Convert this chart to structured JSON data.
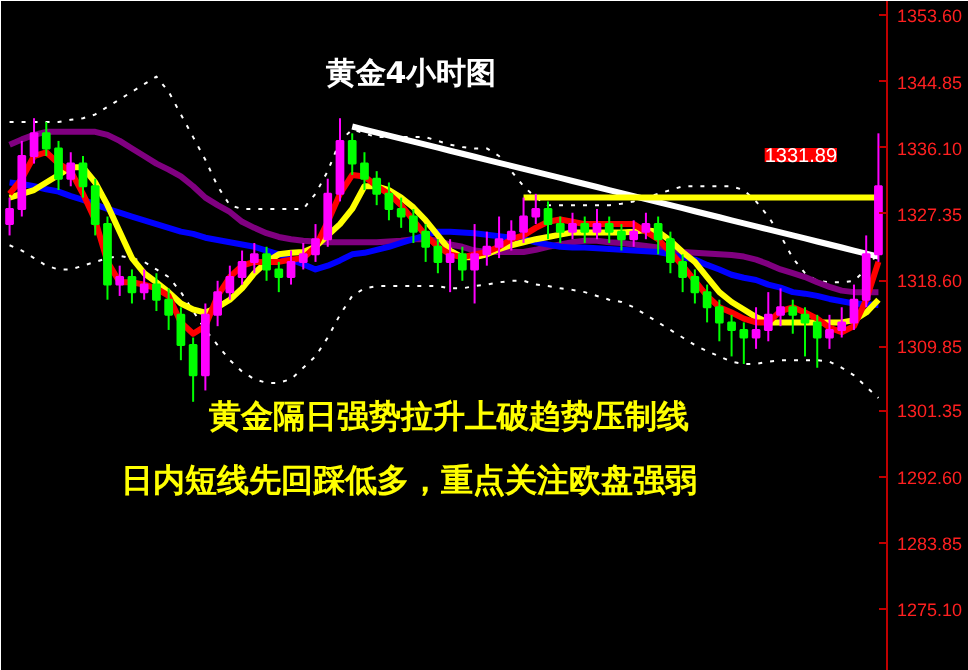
{
  "chart_data": {
    "type": "candlestick",
    "title": "黄金4小时图",
    "categories": [
      null,
      null,
      null,
      null,
      null,
      null,
      null,
      null,
      null,
      null,
      null,
      null,
      null,
      null,
      null,
      null,
      null,
      null,
      null,
      null,
      null,
      null,
      null,
      null,
      null,
      null,
      null,
      null,
      null,
      null,
      null,
      null,
      null,
      null,
      null,
      null,
      null,
      null,
      null,
      null,
      null,
      null,
      null,
      null,
      null,
      null,
      null,
      null,
      null,
      null,
      null,
      null,
      null,
      null,
      null,
      null,
      null,
      null,
      null,
      null,
      null,
      null,
      null,
      null,
      null,
      null,
      null,
      null,
      null,
      null,
      null,
      null
    ],
    "ohlc": [
      [
        1326,
        1329.5,
        1324.5,
        1328
      ],
      [
        1328,
        1337,
        1327,
        1335
      ],
      [
        1335,
        1340,
        1334,
        1338
      ],
      [
        1338,
        1339.5,
        1335,
        1336
      ],
      [
        1336,
        1337,
        1330.5,
        1332
      ],
      [
        1332,
        1335.5,
        1331,
        1334
      ],
      [
        1334,
        1335,
        1329.5,
        1331
      ],
      [
        1331,
        1332,
        1324.5,
        1326
      ],
      [
        1326,
        1327,
        1316,
        1318
      ],
      [
        1318,
        1320.5,
        1316.5,
        1319
      ],
      [
        1319,
        1320,
        1315.5,
        1317
      ],
      [
        1317,
        1320,
        1316,
        1318
      ],
      [
        1318,
        1319.5,
        1314.5,
        1316
      ],
      [
        1316,
        1317.5,
        1312,
        1314
      ],
      [
        1314,
        1315,
        1308,
        1310
      ],
      [
        1310,
        1311,
        1302.5,
        1306
      ],
      [
        1306,
        1315.5,
        1304,
        1314
      ],
      [
        1314,
        1318.5,
        1312.5,
        1317
      ],
      [
        1317,
        1320.5,
        1316,
        1319
      ],
      [
        1319,
        1322.5,
        1318,
        1321
      ],
      [
        1321,
        1323.5,
        1319.5,
        1322
      ],
      [
        1322,
        1323,
        1318.5,
        1320
      ],
      [
        1320,
        1321,
        1317,
        1319
      ],
      [
        1319,
        1322.5,
        1318,
        1321
      ],
      [
        1321,
        1323.5,
        1320,
        1322
      ],
      [
        1322,
        1326,
        1321,
        1324
      ],
      [
        1324,
        1332,
        1323,
        1330
      ],
      [
        1330,
        1340,
        1329,
        1337
      ],
      [
        1337,
        1338,
        1332.5,
        1334
      ],
      [
        1334,
        1335.5,
        1330.5,
        1332
      ],
      [
        1332,
        1333,
        1328.5,
        1330
      ],
      [
        1330,
        1331.5,
        1326.5,
        1328
      ],
      [
        1328,
        1329.5,
        1325.5,
        1327
      ],
      [
        1327,
        1328,
        1323.5,
        1325
      ],
      [
        1325,
        1326,
        1321,
        1323
      ],
      [
        1323,
        1324,
        1319.5,
        1321
      ],
      [
        1321,
        1324,
        1317,
        1322
      ],
      [
        1322,
        1323,
        1318.5,
        1320
      ],
      [
        1320,
        1326,
        1315.5,
        1322
      ],
      [
        1322,
        1325,
        1320.5,
        1323
      ],
      [
        1323,
        1327,
        1321.5,
        1324
      ],
      [
        1324,
        1326.5,
        1322.5,
        1325
      ],
      [
        1325,
        1329.5,
        1323.5,
        1327
      ],
      [
        1327,
        1330,
        1326,
        1328
      ],
      [
        1328,
        1329,
        1324,
        1326
      ],
      [
        1326,
        1327,
        1323.5,
        1325
      ],
      [
        1325,
        1327.5,
        1324,
        1326
      ],
      [
        1326,
        1327,
        1323.5,
        1325
      ],
      [
        1325,
        1328,
        1324,
        1326
      ],
      [
        1326,
        1327,
        1323.5,
        1325
      ],
      [
        1325,
        1326,
        1322.5,
        1324
      ],
      [
        1324,
        1326.5,
        1323,
        1325
      ],
      [
        1325,
        1327.5,
        1324,
        1326
      ],
      [
        1326,
        1327,
        1322,
        1324
      ],
      [
        1324,
        1325,
        1319.5,
        1321
      ],
      [
        1321,
        1322,
        1317,
        1319
      ],
      [
        1319,
        1320,
        1315.5,
        1317
      ],
      [
        1317,
        1318,
        1313,
        1315
      ],
      [
        1315,
        1316,
        1310.5,
        1313
      ],
      [
        1313,
        1314,
        1308.5,
        1312
      ],
      [
        1312,
        1313,
        1307.5,
        1311
      ],
      [
        1311,
        1315,
        1309.5,
        1312
      ],
      [
        1312,
        1317,
        1310.5,
        1314
      ],
      [
        1314,
        1317.5,
        1312.5,
        1315
      ],
      [
        1315,
        1316,
        1311.5,
        1314
      ],
      [
        1314,
        1315,
        1308.5,
        1313
      ],
      [
        1313,
        1314,
        1307,
        1311
      ],
      [
        1311,
        1314,
        1309.5,
        1312
      ],
      [
        1312,
        1315,
        1311,
        1313
      ],
      [
        1313,
        1318,
        1312,
        1316
      ],
      [
        1316,
        1324.5,
        1315,
        1322
      ],
      [
        1322,
        1338,
        1321,
        1331
      ]
    ],
    "colors": [
      "#ff00ff",
      "#ff00ff",
      "#ff00ff",
      "#00ff00",
      "#00ff00",
      "#ff00ff",
      "#00ff00",
      "#00ff00",
      "#00ff00",
      "#ff00ff",
      "#00ff00",
      "#ff00ff",
      "#00ff00",
      "#00ff00",
      "#00ff00",
      "#00ff00",
      "#ff00ff",
      "#ff00ff",
      "#ff00ff",
      "#ff00ff",
      "#ff00ff",
      "#00ff00",
      "#00ff00",
      "#ff00ff",
      "#ff00ff",
      "#ff00ff",
      "#ff00ff",
      "#ff00ff",
      "#00ff00",
      "#00ff00",
      "#00ff00",
      "#00ff00",
      "#00ff00",
      "#00ff00",
      "#00ff00",
      "#00ff00",
      "#ff00ff",
      "#00ff00",
      "#ff00ff",
      "#ff00ff",
      "#ff00ff",
      "#ff00ff",
      "#ff00ff",
      "#ff00ff",
      "#00ff00",
      "#00ff00",
      "#ff00ff",
      "#00ff00",
      "#ff00ff",
      "#00ff00",
      "#00ff00",
      "#ff00ff",
      "#ff00ff",
      "#00ff00",
      "#00ff00",
      "#00ff00",
      "#00ff00",
      "#00ff00",
      "#00ff00",
      "#00ff00",
      "#00ff00",
      "#ff00ff",
      "#ff00ff",
      "#ff00ff",
      "#00ff00",
      "#00ff00",
      "#00ff00",
      "#ff00ff",
      "#ff00ff",
      "#ff00ff",
      "#ff00ff",
      "#ff00ff"
    ],
    "series": [
      {
        "type": "line",
        "line_style": "dotted",
        "color": "#ffffff",
        "values": [
          1339.5,
          1339.5,
          1339.5,
          1339.5,
          1339.5,
          1339.8,
          1340,
          1340.5,
          1341.5,
          1342.5,
          1343.5,
          1344.5,
          1345.5,
          1343.5,
          1340.5,
          1337.5,
          1334.5,
          1331,
          1328.5,
          1328,
          1328,
          1328,
          1328,
          1328,
          1328,
          1330,
          1333,
          1337,
          1338.5,
          1338,
          1337.5,
          1337.5,
          1337.5,
          1337.5,
          1337.5,
          1337,
          1336.5,
          1336.2,
          1336,
          1336,
          1335,
          1333,
          1331,
          1329.5,
          1328.5,
          1328.5,
          1328.5,
          1328.5,
          1328.5,
          1328.5,
          1328.7,
          1329,
          1329.5,
          1330,
          1330.5,
          1331,
          1331,
          1331,
          1331,
          1331,
          1330.5,
          1329,
          1327,
          1324.5,
          1321.5,
          1319.5,
          1318.5,
          1318.3,
          1318.3,
          1318.5,
          1320,
          1322.3
        ]
      },
      {
        "type": "line",
        "line_style": "dotted",
        "color": "#ffffff",
        "values": [
          1323.2,
          1322.5,
          1321.5,
          1320.5,
          1320,
          1320,
          1320.5,
          1321,
          1321.5,
          1321.8,
          1321.5,
          1321,
          1320,
          1319,
          1317,
          1314.5,
          1312,
          1310,
          1308,
          1306.5,
          1305.5,
          1305,
          1305,
          1305.5,
          1307,
          1308.5,
          1311,
          1314,
          1316.5,
          1317.5,
          1317.8,
          1317.8,
          1317.8,
          1317.8,
          1317.8,
          1317.8,
          1317.5,
          1317.5,
          1317.8,
          1318,
          1318.3,
          1318.5,
          1318.5,
          1318,
          1317.8,
          1317.5,
          1317.3,
          1317,
          1316.5,
          1316,
          1315.7,
          1315,
          1314,
          1313,
          1312,
          1311,
          1310,
          1309.2,
          1308.5,
          1307.8,
          1307.5,
          1307.5,
          1307.8,
          1308,
          1308,
          1308,
          1308,
          1307.8,
          1307,
          1306,
          1304.5,
          1303
        ]
      },
      {
        "type": "line",
        "line_style": "solid",
        "color": "#800080",
        "values": [
          1336.5,
          1337.2,
          1337.8,
          1338.2,
          1338.2,
          1338.2,
          1338.2,
          1338.2,
          1337.8,
          1337,
          1336,
          1335,
          1334,
          1333.2,
          1332.3,
          1331,
          1329.5,
          1328.5,
          1327.6,
          1326.3,
          1325.5,
          1324.8,
          1324.3,
          1324,
          1323.8,
          1323.7,
          1323.6,
          1323.6,
          1323.6,
          1323.6,
          1323.6,
          1323.7,
          1323.8,
          1324,
          1324,
          1323.8,
          1323.3,
          1323,
          1322.5,
          1322.3,
          1322.3,
          1322.3,
          1322.3,
          1322.6,
          1323,
          1323.3,
          1323.6,
          1323.8,
          1323.8,
          1323.6,
          1323.5,
          1323.3,
          1323.1,
          1322.9,
          1322.6,
          1322.3,
          1322.2,
          1322.1,
          1322,
          1321.9,
          1321.7,
          1321.3,
          1320.7,
          1320,
          1319.5,
          1319,
          1318.3,
          1317.7,
          1317.2,
          1317,
          1317,
          1317
        ]
      },
      {
        "type": "line",
        "line_style": "solid",
        "color": "#0000ff",
        "values": [
          1331.5,
          1331.3,
          1331,
          1330.6,
          1330.3,
          1329.7,
          1329.2,
          1328.6,
          1328,
          1327.5,
          1327,
          1326.5,
          1326,
          1325.5,
          1325,
          1324.7,
          1324.2,
          1323.9,
          1323.6,
          1323.3,
          1323,
          1322.5,
          1322,
          1321.3,
          1320.7,
          1320,
          1320.5,
          1321.2,
          1322,
          1322.2,
          1322.6,
          1323,
          1323.5,
          1324,
          1324.5,
          1325,
          1325,
          1324.9,
          1324.8,
          1324.6,
          1324.4,
          1324.2,
          1324,
          1323.6,
          1323.3,
          1323,
          1322.9,
          1322.9,
          1322.8,
          1322.7,
          1322.6,
          1322.5,
          1322.4,
          1322.3,
          1322,
          1321.6,
          1321.3,
          1320.6,
          1320,
          1319.3,
          1318.9,
          1318.6,
          1318,
          1317.6,
          1317,
          1316.8,
          1316.5,
          1316.1,
          1315.8,
          1315.5,
          1315.4,
          1315.3
        ]
      },
      {
        "type": "line",
        "line_style": "solid",
        "color": "#ffff00",
        "values": [
          1329.5,
          1330,
          1330.5,
          1331.5,
          1332.5,
          1333.5,
          1333.5,
          1331.5,
          1328.5,
          1325,
          1321.5,
          1319.5,
          1318.3,
          1317,
          1315.5,
          1314.7,
          1314.3,
          1315,
          1316,
          1317.5,
          1319.5,
          1321,
          1322,
          1322.2,
          1322.3,
          1323,
          1324.5,
          1326,
          1328,
          1331,
          1331,
          1330.5,
          1329.5,
          1328.2,
          1326.5,
          1324.5,
          1322.5,
          1321.6,
          1321.6,
          1322,
          1322.7,
          1323.2,
          1323.6,
          1324,
          1324.3,
          1324.6,
          1324.9,
          1324.9,
          1324.9,
          1324.9,
          1324.9,
          1325,
          1325.2,
          1325,
          1323.8,
          1322.3,
          1321,
          1319,
          1317,
          1315.7,
          1314.7,
          1313.7,
          1313,
          1313,
          1313,
          1313,
          1313,
          1313,
          1313,
          1313.3,
          1314.3,
          1316
        ]
      },
      {
        "type": "line",
        "line_style": "solid",
        "color": "#ff0000",
        "values": [
          1330,
          1332,
          1335,
          1335.5,
          1334,
          1333,
          1330,
          1326.5,
          1321,
          1318.3,
          1318.3,
          1318,
          1317.5,
          1316.5,
          1313,
          1311.5,
          1312.5,
          1316.5,
          1319,
          1320.5,
          1321,
          1321,
          1321,
          1321.3,
          1321.5,
          1323,
          1326.3,
          1330,
          1332.5,
          1332.3,
          1331,
          1330,
          1328.5,
          1326.5,
          1324.5,
          1323,
          1322,
          1321.6,
          1322,
          1322.3,
          1323,
          1324,
          1324.5,
          1325.5,
          1326.3,
          1326.6,
          1326.3,
          1326,
          1326,
          1326,
          1326,
          1326,
          1325,
          1324,
          1322.3,
          1320.5,
          1318.5,
          1316.5,
          1315,
          1314.3,
          1313.5,
          1313,
          1313,
          1314.5,
          1315,
          1314.3,
          1313.5,
          1312.3,
          1311.7,
          1312.5,
          1316,
          1321
        ]
      },
      {
        "type": "line",
        "line_style": "solid",
        "color": "#ffffff",
        "values": [
          null,
          null,
          null,
          null,
          null,
          null,
          null,
          null,
          null,
          null,
          null,
          null,
          null,
          null,
          null,
          null,
          null,
          null,
          null,
          null,
          null,
          null,
          null,
          null,
          null,
          null,
          null,
          null,
          1338.9,
          1338.5,
          1338.1,
          1337.7,
          1337.3,
          1336.9,
          1336.5,
          1336.1,
          1335.7,
          1335.3,
          1334.9,
          1334.5,
          1334.1,
          1333.7,
          1333.3,
          1332.9,
          1332.5,
          1332.1,
          1331.7,
          1331.3,
          1330.9,
          1330.5,
          1330.1,
          1329.7,
          1329.3,
          1328.9,
          1328.5,
          1328.1,
          1327.7,
          1327.3,
          1326.9,
          1326.5,
          1326.1,
          1325.7,
          1325.3,
          1324.9,
          1324.5,
          1324.1,
          1323.7,
          1323.3,
          1322.9,
          1322.5,
          1322.1,
          1321.7
        ]
      },
      {
        "type": "line",
        "line_style": "solid",
        "color": "#ffff00",
        "values": [
          null,
          null,
          null,
          null,
          null,
          null,
          null,
          null,
          null,
          null,
          null,
          null,
          null,
          null,
          null,
          null,
          null,
          null,
          null,
          null,
          null,
          null,
          null,
          null,
          null,
          null,
          null,
          null,
          null,
          null,
          null,
          null,
          null,
          null,
          null,
          null,
          null,
          null,
          null,
          null,
          null,
          null,
          1329.5,
          1329.5,
          1329.5,
          1329.5,
          1329.5,
          1329.5,
          1329.5,
          1329.5,
          1329.5,
          1329.5,
          1329.5,
          1329.5,
          1329.5,
          1329.5,
          1329.5,
          1329.5,
          1329.5,
          1329.5,
          1329.5,
          1329.5,
          1329.5,
          1329.5,
          1329.5,
          1329.5,
          1329.5,
          1329.5,
          1329.5,
          1329.5,
          1329.5,
          1329.5
        ]
      }
    ],
    "ylim": [
      1266.9,
      1355.5
    ],
    "yticks": [
      {
        "value": 1353.6,
        "label": "1353.60"
      },
      {
        "value": 1344.85,
        "label": "1344.85"
      },
      {
        "value": 1336.1,
        "label": "1336.10"
      },
      {
        "value": 1327.35,
        "label": "1327.35"
      },
      {
        "value": 1318.6,
        "label": "1318.60"
      },
      {
        "value": 1309.85,
        "label": "1309.85"
      },
      {
        "value": 1301.35,
        "label": "1301.35"
      },
      {
        "value": 1292.6,
        "label": "1292.60"
      },
      {
        "value": 1283.85,
        "label": "1283.85"
      },
      {
        "value": 1275.1,
        "label": "1275.10"
      }
    ],
    "tick_labels": "y",
    "grid": false,
    "annotations": [
      "1331.89",
      "黄金隔日强势拉升上破趋势压制线",
      "日内短线先回踩低多，重点关注欧盘强弱"
    ]
  }
}
